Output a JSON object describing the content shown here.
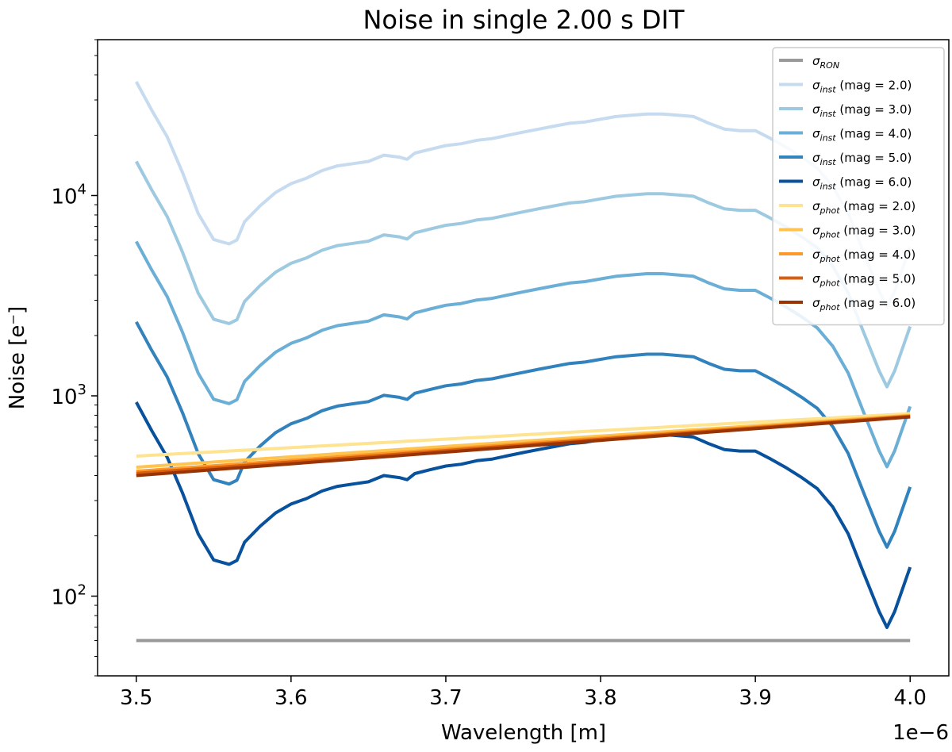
{
  "chart_data": {
    "type": "line",
    "title": "Noise in single 2.00 s DIT",
    "xlabel": "Wavelength [m]",
    "ylabel": "Noise [e⁻]",
    "x_offset_label": "1e−6",
    "yscale": "log",
    "xlim": [
      3.475,
      4.025
    ],
    "ylim": [
      40,
      60000
    ],
    "x_ticks": [
      3.5,
      3.6,
      3.7,
      3.8,
      3.9,
      4.0
    ],
    "x_tick_labels": [
      "3.5",
      "3.6",
      "3.7",
      "3.8",
      "3.9",
      "4.0"
    ],
    "y_major_ticks": [
      100,
      1000,
      10000
    ],
    "y_tick_labels": [
      {
        "base": "10",
        "exp": "2"
      },
      {
        "base": "10",
        "exp": "3"
      },
      {
        "base": "10",
        "exp": "4"
      }
    ],
    "legend_position": "top-right",
    "ron": {
      "value": 60,
      "color": "#999999",
      "label_symbol": "σ",
      "label_sub": "RON",
      "label_rest": ""
    },
    "inst_shape": {
      "x": [
        3.5,
        3.51,
        3.52,
        3.53,
        3.54,
        3.55,
        3.56,
        3.565,
        3.57,
        3.58,
        3.59,
        3.6,
        3.61,
        3.62,
        3.625,
        3.63,
        3.64,
        3.65,
        3.66,
        3.67,
        3.675,
        3.68,
        3.69,
        3.7,
        3.71,
        3.72,
        3.73,
        3.74,
        3.75,
        3.76,
        3.77,
        3.78,
        3.79,
        3.8,
        3.81,
        3.82,
        3.83,
        3.84,
        3.85,
        3.86,
        3.87,
        3.88,
        3.89,
        3.9,
        3.91,
        3.92,
        3.93,
        3.94,
        3.95,
        3.96,
        3.97,
        3.98,
        3.985,
        3.99,
        4.0
      ],
      "factor": [
        1.0,
        0.72,
        0.53,
        0.35,
        0.22,
        0.163,
        0.155,
        0.162,
        0.2,
        0.24,
        0.28,
        0.31,
        0.33,
        0.36,
        0.37,
        0.38,
        0.39,
        0.4,
        0.43,
        0.42,
        0.41,
        0.44,
        0.46,
        0.48,
        0.49,
        0.51,
        0.52,
        0.54,
        0.56,
        0.58,
        0.6,
        0.62,
        0.63,
        0.65,
        0.67,
        0.68,
        0.69,
        0.69,
        0.68,
        0.67,
        0.62,
        0.58,
        0.57,
        0.57,
        0.52,
        0.47,
        0.42,
        0.37,
        0.3,
        0.22,
        0.14,
        0.09,
        0.075,
        0.09,
        0.15
      ]
    },
    "series": [
      {
        "name": "sigma_inst mag 2.0",
        "kind": "inst",
        "scale": 37000,
        "color": "#c6dbef",
        "label_symbol": "σ",
        "label_sub": "inst",
        "label_rest": " (mag = 2.0)"
      },
      {
        "name": "sigma_inst mag 3.0",
        "kind": "inst",
        "scale": 14800,
        "color": "#9ecae1",
        "label_symbol": "σ",
        "label_sub": "inst",
        "label_rest": " (mag = 3.0)"
      },
      {
        "name": "sigma_inst mag 4.0",
        "kind": "inst",
        "scale": 5900,
        "color": "#6baed6",
        "label_symbol": "σ",
        "label_sub": "inst",
        "label_rest": " (mag = 4.0)"
      },
      {
        "name": "sigma_inst mag 5.0",
        "kind": "inst",
        "scale": 2340,
        "color": "#3182bd",
        "label_symbol": "σ",
        "label_sub": "inst",
        "label_rest": " (mag = 5.0)"
      },
      {
        "name": "sigma_inst mag 6.0",
        "kind": "inst",
        "scale": 930,
        "color": "#08519c",
        "label_symbol": "σ",
        "label_sub": "inst",
        "label_rest": " (mag = 6.0)"
      },
      {
        "name": "sigma_phot mag 2.0",
        "kind": "phot",
        "x": [
          3.5,
          4.0
        ],
        "values": [
          500,
          815
        ],
        "color": "#fee391",
        "label_symbol": "σ",
        "label_sub": "phot",
        "label_rest": " (mag = 2.0)"
      },
      {
        "name": "sigma_phot mag 3.0",
        "kind": "phot",
        "x": [
          3.5,
          4.0
        ],
        "values": [
          440,
          800
        ],
        "color": "#fec44f",
        "label_symbol": "σ",
        "label_sub": "phot",
        "label_rest": " (mag = 3.0)"
      },
      {
        "name": "sigma_phot mag 4.0",
        "kind": "phot",
        "x": [
          3.5,
          4.0
        ],
        "values": [
          420,
          795
        ],
        "color": "#fe9929",
        "label_symbol": "σ",
        "label_sub": "phot",
        "label_rest": " (mag = 4.0)"
      },
      {
        "name": "sigma_phot mag 5.0",
        "kind": "phot",
        "x": [
          3.5,
          4.0
        ],
        "values": [
          410,
          790
        ],
        "color": "#d95f0e",
        "label_symbol": "σ",
        "label_sub": "phot",
        "label_rest": " (mag = 5.0)"
      },
      {
        "name": "sigma_phot mag 6.0",
        "kind": "phot",
        "x": [
          3.5,
          4.0
        ],
        "values": [
          400,
          785
        ],
        "color": "#993404",
        "label_symbol": "σ",
        "label_sub": "phot",
        "label_rest": " (mag = 6.0)"
      }
    ]
  }
}
